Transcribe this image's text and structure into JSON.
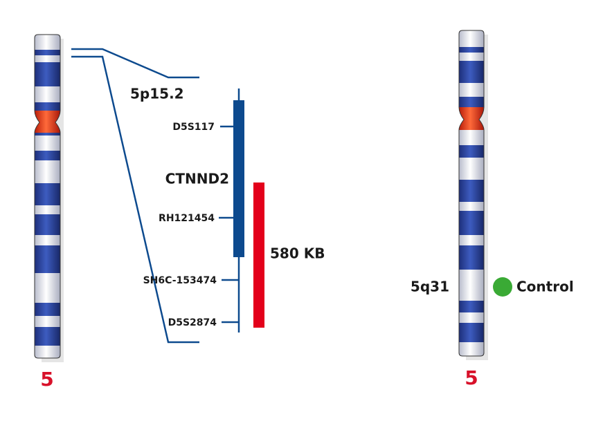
{
  "ideogram_left": {
    "label": "5"
  },
  "region_label": "5p15.2",
  "markers": [
    "D5S117",
    "RH121454",
    "SH6C-153474",
    "D5S2874"
  ],
  "gene": "CTNND2",
  "deletion_size": "580 KB",
  "ideogram_right": {
    "label": "5",
    "band_label": "5q31",
    "probe_label": "Control"
  }
}
